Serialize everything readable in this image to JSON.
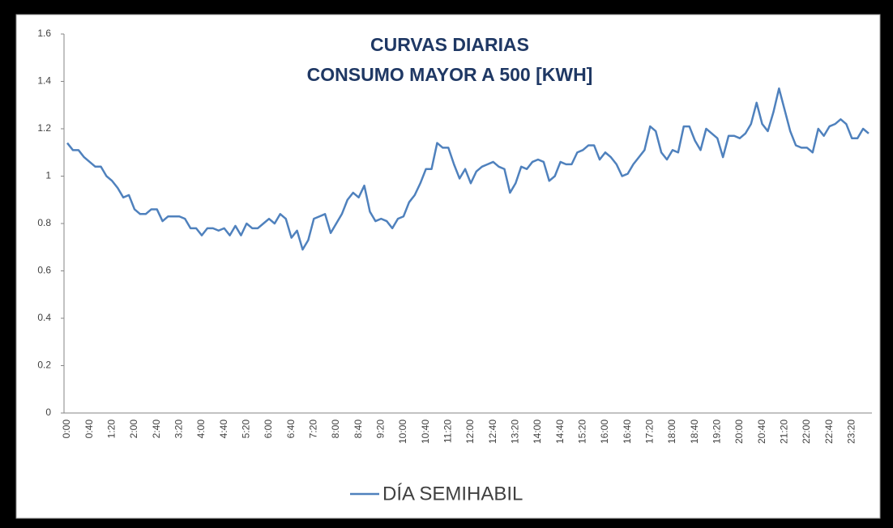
{
  "chart_data": {
    "type": "line",
    "title": [
      "CURVAS DIARIAS",
      "CONSUMO MAYOR A 500 [KWH]"
    ],
    "categories": [
      "0:00",
      null,
      null,
      null,
      "0:40",
      null,
      null,
      null,
      "1:20",
      null,
      null,
      null,
      "2:00",
      null,
      null,
      null,
      "2:40",
      null,
      null,
      null,
      "3:20",
      null,
      null,
      null,
      "4:00",
      null,
      null,
      null,
      "4:40",
      null,
      null,
      null,
      "5:20",
      null,
      null,
      null,
      "6:00",
      null,
      null,
      null,
      "6:40",
      null,
      null,
      null,
      "7:20",
      null,
      null,
      null,
      "8:00",
      null,
      null,
      null,
      "8:40",
      null,
      null,
      null,
      "9:20",
      null,
      null,
      null,
      "10:00",
      null,
      null,
      null,
      "10:40",
      null,
      null,
      null,
      "11:20",
      null,
      null,
      null,
      "12:00",
      null,
      null,
      null,
      "12:40",
      null,
      null,
      null,
      "13:20",
      null,
      null,
      null,
      "14:00",
      null,
      null,
      null,
      "14:40",
      null,
      null,
      null,
      "15:20",
      null,
      null,
      null,
      "16:00",
      null,
      null,
      null,
      "16:40",
      null,
      null,
      null,
      "17:20",
      null,
      null,
      null,
      "18:00",
      null,
      null,
      null,
      "18:40",
      null,
      null,
      null,
      "19:20",
      null,
      null,
      null,
      "20:00",
      null,
      null,
      null,
      "20:40",
      null,
      null,
      null,
      "21:20",
      null,
      null,
      null,
      "22:00",
      null,
      null,
      null,
      "22:40",
      null,
      null,
      null,
      "23:20",
      null,
      null,
      null
    ],
    "series": [
      {
        "name": "DÍA SEMIHABIL",
        "color": "#4f81bd",
        "values": [
          1.14,
          1.11,
          1.11,
          1.08,
          1.06,
          1.04,
          1.04,
          1.0,
          0.98,
          0.95,
          0.91,
          0.92,
          0.86,
          0.84,
          0.84,
          0.86,
          0.86,
          0.81,
          0.83,
          0.83,
          0.83,
          0.82,
          0.78,
          0.78,
          0.75,
          0.78,
          0.78,
          0.77,
          0.78,
          0.75,
          0.79,
          0.75,
          0.8,
          0.78,
          0.78,
          0.8,
          0.82,
          0.8,
          0.84,
          0.82,
          0.74,
          0.77,
          0.69,
          0.73,
          0.82,
          0.83,
          0.84,
          0.76,
          0.8,
          0.84,
          0.9,
          0.93,
          0.91,
          0.96,
          0.85,
          0.81,
          0.82,
          0.81,
          0.78,
          0.82,
          0.83,
          0.89,
          0.92,
          0.97,
          1.03,
          1.03,
          1.14,
          1.12,
          1.12,
          1.05,
          0.99,
          1.03,
          0.97,
          1.02,
          1.04,
          1.05,
          1.06,
          1.04,
          1.03,
          0.93,
          0.97,
          1.04,
          1.03,
          1.06,
          1.07,
          1.06,
          0.98,
          1.0,
          1.06,
          1.05,
          1.05,
          1.1,
          1.11,
          1.13,
          1.13,
          1.07,
          1.1,
          1.08,
          1.05,
          1.0,
          1.01,
          1.05,
          1.08,
          1.11,
          1.21,
          1.19,
          1.1,
          1.07,
          1.11,
          1.1,
          1.21,
          1.21,
          1.15,
          1.11,
          1.2,
          1.18,
          1.16,
          1.08,
          1.17,
          1.17,
          1.16,
          1.18,
          1.22,
          1.31,
          1.22,
          1.19,
          1.27,
          1.37,
          1.28,
          1.19,
          1.13,
          1.12,
          1.12,
          1.1,
          1.2,
          1.17,
          1.21,
          1.22,
          1.24,
          1.22,
          1.16,
          1.16,
          1.2,
          1.18
        ]
      }
    ],
    "ylim": [
      0,
      1.6
    ],
    "yticks": [
      0,
      0.2,
      0.4,
      0.6,
      0.8,
      1,
      1.2,
      1.4,
      1.6
    ],
    "grid": false,
    "legend": "bottom"
  }
}
